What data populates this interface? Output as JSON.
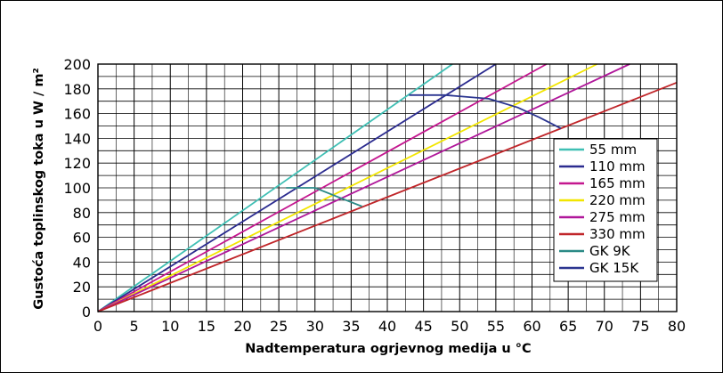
{
  "chart_data": {
    "type": "line",
    "xlabel": "Nadtemperatura ogrjevnog medija u °C",
    "ylabel": "Gustoća toplinskog toka u W / m²",
    "xlim": [
      0,
      80
    ],
    "ylim": [
      0,
      200
    ],
    "xticks": [
      0,
      5,
      10,
      15,
      20,
      25,
      30,
      35,
      40,
      45,
      50,
      55,
      60,
      65,
      70,
      75,
      80
    ],
    "yticks": [
      0,
      20,
      40,
      60,
      80,
      100,
      120,
      140,
      160,
      180,
      200
    ],
    "grid": true,
    "legend_position": "bottom-right",
    "series": [
      {
        "name": "55 mm",
        "color": "#3fbfb4",
        "x": [
          0,
          49
        ],
        "y": [
          0,
          200
        ]
      },
      {
        "name": "110 mm",
        "color": "#2b2b8f",
        "x": [
          0,
          55
        ],
        "y": [
          0,
          200
        ]
      },
      {
        "name": "165 mm",
        "color": "#c4178f",
        "x": [
          0,
          62
        ],
        "y": [
          0,
          200
        ]
      },
      {
        "name": "220 mm",
        "color": "#f2e600",
        "x": [
          0,
          69
        ],
        "y": [
          0,
          200
        ]
      },
      {
        "name": "275 mm",
        "color": "#b0179a",
        "x": [
          0,
          73.5
        ],
        "y": [
          0,
          200
        ]
      },
      {
        "name": "330 mm",
        "color": "#c0262a",
        "x": [
          0,
          80
        ],
        "y": [
          0,
          185
        ]
      },
      {
        "name": "GK 9K",
        "color": "#2a8a86",
        "x": [
          26,
          30,
          33,
          36.5
        ],
        "y": [
          100,
          100,
          93,
          85
        ]
      },
      {
        "name": "GK 15K",
        "color": "#2b3590",
        "x": [
          43,
          48,
          54,
          58,
          61,
          64
        ],
        "y": [
          175,
          175,
          172,
          165,
          157,
          148
        ]
      }
    ]
  }
}
